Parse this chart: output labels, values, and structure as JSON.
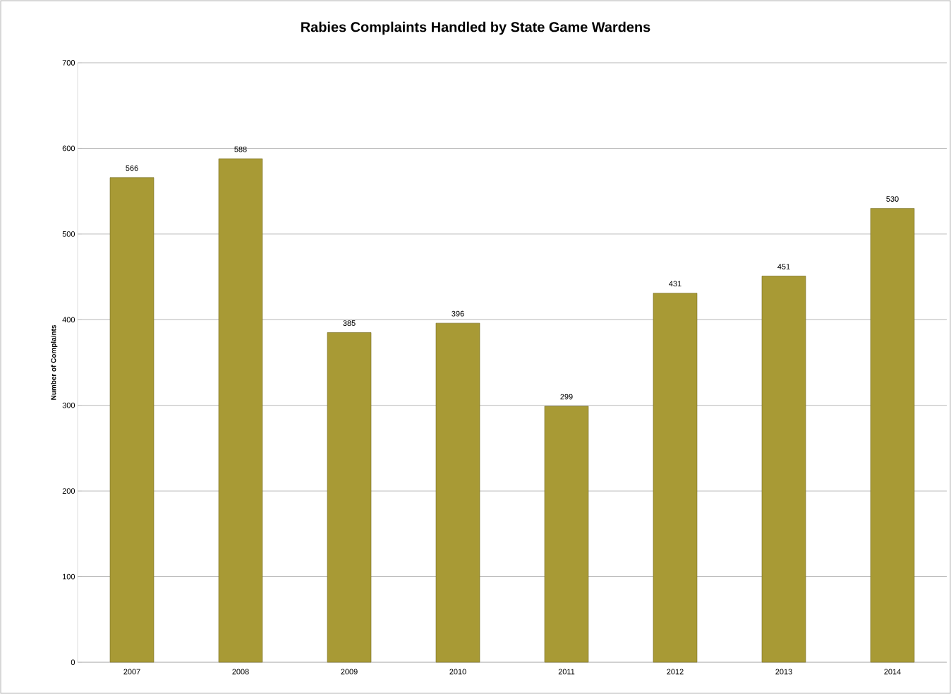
{
  "chart_data": {
    "type": "bar",
    "title": "Rabies Complaints Handled by State Game Wardens",
    "ylabel": "Number of Complaints",
    "categories": [
      "2007",
      "2008",
      "2009",
      "2010",
      "2011",
      "2012",
      "2013",
      "2014"
    ],
    "values": [
      566,
      588,
      385,
      396,
      299,
      431,
      451,
      530
    ],
    "color": "#a89a35",
    "ylim": [
      0,
      700
    ],
    "yticks": [
      0,
      100,
      200,
      300,
      400,
      500,
      600,
      700
    ],
    "grid": "y",
    "data_labels": true
  }
}
